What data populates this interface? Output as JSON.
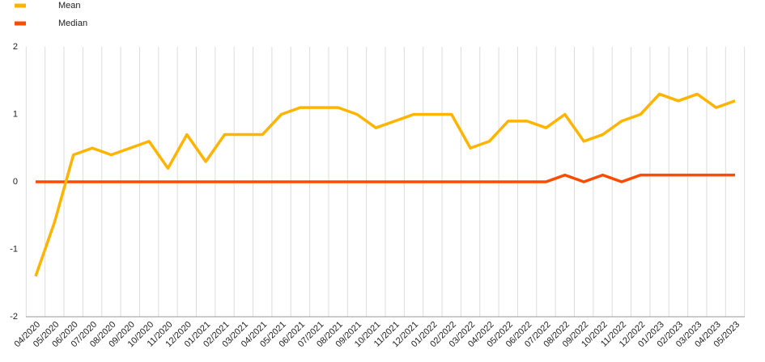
{
  "chart_data": {
    "type": "line",
    "categories": [
      "04/2020",
      "05/2020",
      "06/2020",
      "07/2020",
      "08/2020",
      "09/2020",
      "10/2020",
      "11/2020",
      "12/2020",
      "01/2021",
      "02/2021",
      "03/2021",
      "04/2021",
      "05/2021",
      "06/2021",
      "07/2021",
      "08/2021",
      "09/2021",
      "10/2021",
      "11/2021",
      "12/2021",
      "01/2022",
      "02/2022",
      "03/2022",
      "04/2022",
      "05/2022",
      "06/2022",
      "07/2022",
      "08/2022",
      "09/2022",
      "10/2022",
      "11/2022",
      "12/2022",
      "01/2023",
      "02/2023",
      "03/2023",
      "04/2023",
      "05/2023"
    ],
    "series": [
      {
        "name": "Mean",
        "color": "#ffb400",
        "values": [
          -1.4,
          -0.6,
          0.4,
          0.5,
          0.4,
          0.5,
          0.6,
          0.2,
          0.7,
          0.3,
          0.7,
          0.7,
          0.7,
          1.0,
          1.1,
          1.1,
          1.1,
          1.0,
          0.8,
          0.9,
          1.0,
          1.0,
          1.0,
          0.5,
          0.6,
          0.9,
          0.9,
          0.8,
          1.0,
          0.6,
          0.7,
          0.9,
          1.0,
          1.3,
          1.2,
          1.3,
          1.1,
          1.2
        ]
      },
      {
        "name": "Median",
        "color": "#ff4b00",
        "values": [
          0,
          0,
          0,
          0,
          0,
          0,
          0,
          0,
          0,
          0,
          0,
          0,
          0,
          0,
          0,
          0,
          0,
          0,
          0,
          0,
          0,
          0,
          0,
          0,
          0,
          0,
          0,
          0,
          0.1,
          0,
          0.1,
          0,
          0.1,
          0.1,
          0.1,
          0.1,
          0.1,
          0.1
        ]
      }
    ],
    "ylim": [
      -2,
      2
    ],
    "yticks": [
      -2,
      -1,
      0,
      1,
      2
    ],
    "grid": true,
    "legend": "top-left"
  }
}
